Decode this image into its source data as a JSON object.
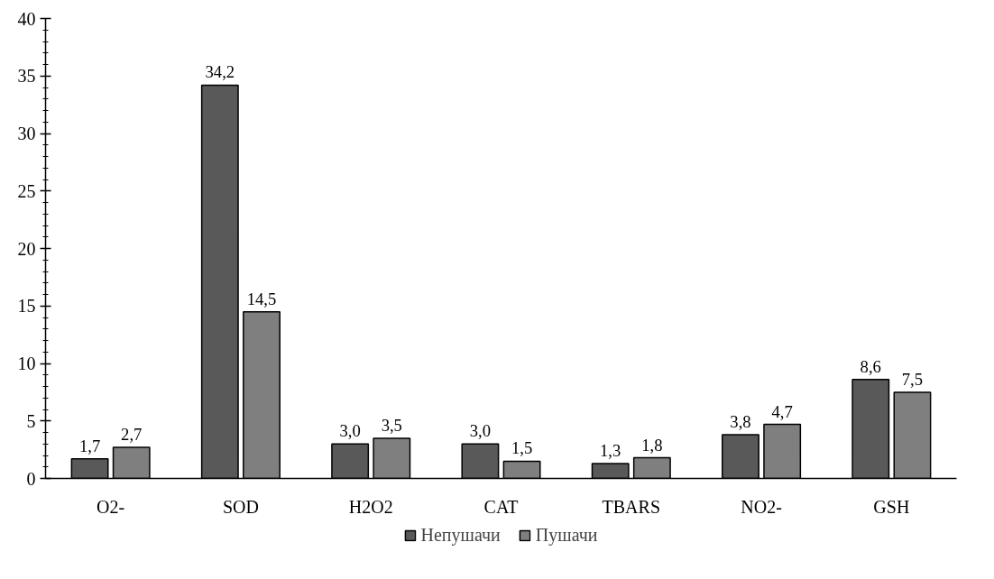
{
  "chart_data": {
    "type": "bar",
    "categories": [
      "O2-",
      "SOD",
      "H2O2",
      "CAT",
      "TBARS",
      "NO2-",
      "GSH"
    ],
    "series": [
      {
        "name": "Непушачи",
        "color": "#595959",
        "values": [
          1.7,
          34.2,
          3.0,
          3.0,
          1.3,
          3.8,
          8.6
        ],
        "value_labels": [
          "1,7",
          "34,2",
          "3,0",
          "3,0",
          "1,3",
          "3,8",
          "8,6"
        ]
      },
      {
        "name": "Пушачи",
        "color": "#7f7f7f",
        "values": [
          2.7,
          14.5,
          3.5,
          1.5,
          1.8,
          4.7,
          7.5
        ],
        "value_labels": [
          "2,7",
          "14,5",
          "3,5",
          "1,5",
          "1,8",
          "4,7",
          "7,5"
        ]
      }
    ],
    "ylim": [
      0,
      40
    ],
    "yticks": [
      0,
      5,
      10,
      15,
      20,
      25,
      30,
      35,
      40
    ],
    "grid": false,
    "legend": "bottom"
  }
}
